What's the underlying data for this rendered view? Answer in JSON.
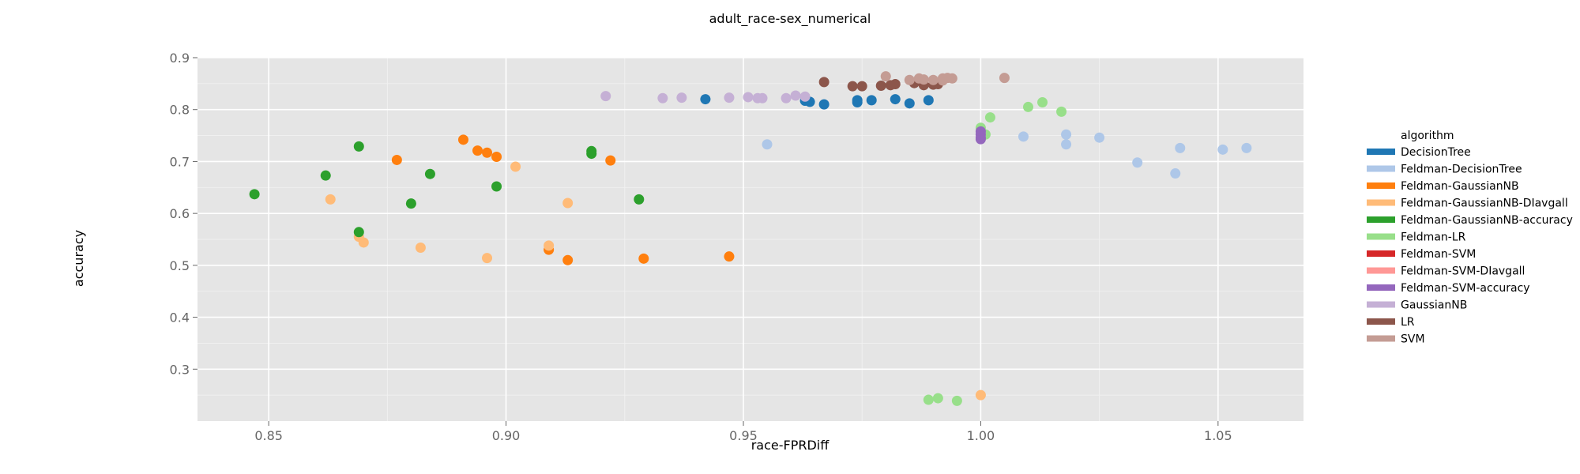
{
  "chart_data": {
    "type": "scatter",
    "title": "adult_race-sex_numerical",
    "xlabel": "race-FPRDiff",
    "ylabel": "accuracy",
    "xlim": [
      0.835,
      1.068
    ],
    "ylim": [
      0.2,
      0.9
    ],
    "xticks": [
      "0.85",
      "0.90",
      "0.95",
      "1.00",
      "1.05"
    ],
    "yticks": [
      "0.3",
      "0.4",
      "0.5",
      "0.6",
      "0.7",
      "0.8",
      "0.9"
    ],
    "grid": true,
    "legend": {
      "title": "algorithm",
      "position": "right"
    },
    "series": [
      {
        "name": "DecisionTree",
        "color": "#1f77b4",
        "points": [
          [
            0.942,
            0.82
          ],
          [
            0.963,
            0.817
          ],
          [
            0.964,
            0.815
          ],
          [
            0.967,
            0.81
          ],
          [
            0.974,
            0.818
          ],
          [
            0.974,
            0.814
          ],
          [
            0.977,
            0.818
          ],
          [
            0.982,
            0.82
          ],
          [
            0.985,
            0.812
          ],
          [
            0.989,
            0.818
          ]
        ]
      },
      {
        "name": "Feldman-DecisionTree",
        "color": "#aec7e8",
        "points": [
          [
            0.955,
            0.733
          ],
          [
            1.009,
            0.748
          ],
          [
            1.018,
            0.752
          ],
          [
            1.018,
            0.733
          ],
          [
            1.025,
            0.746
          ],
          [
            1.033,
            0.698
          ],
          [
            1.041,
            0.677
          ],
          [
            1.042,
            0.726
          ],
          [
            1.051,
            0.723
          ],
          [
            1.056,
            0.726
          ]
        ]
      },
      {
        "name": "Feldman-GaussianNB",
        "color": "#ff7f0e",
        "points": [
          [
            0.877,
            0.703
          ],
          [
            0.891,
            0.742
          ],
          [
            0.894,
            0.721
          ],
          [
            0.896,
            0.717
          ],
          [
            0.898,
            0.709
          ],
          [
            0.909,
            0.53
          ],
          [
            0.913,
            0.51
          ],
          [
            0.922,
            0.702
          ],
          [
            0.929,
            0.513
          ],
          [
            0.947,
            0.517
          ]
        ]
      },
      {
        "name": "Feldman-GaussianNB-DIavgall",
        "color": "#ffbb78",
        "points": [
          [
            0.863,
            0.627
          ],
          [
            0.869,
            0.555
          ],
          [
            0.87,
            0.544
          ],
          [
            0.882,
            0.534
          ],
          [
            0.896,
            0.514
          ],
          [
            0.902,
            0.69
          ],
          [
            0.909,
            0.538
          ],
          [
            0.913,
            0.62
          ],
          [
            1.0,
            0.25
          ]
        ]
      },
      {
        "name": "Feldman-GaussianNB-accuracy",
        "color": "#2ca02c",
        "points": [
          [
            0.847,
            0.637
          ],
          [
            0.862,
            0.673
          ],
          [
            0.869,
            0.729
          ],
          [
            0.869,
            0.564
          ],
          [
            0.88,
            0.619
          ],
          [
            0.884,
            0.676
          ],
          [
            0.898,
            0.652
          ],
          [
            0.918,
            0.715
          ],
          [
            0.918,
            0.72
          ],
          [
            0.928,
            0.627
          ]
        ]
      },
      {
        "name": "Feldman-LR",
        "color": "#98df8a",
        "points": [
          [
            0.989,
            0.241
          ],
          [
            0.991,
            0.244
          ],
          [
            0.995,
            0.239
          ],
          [
            1.0,
            0.765
          ],
          [
            1.001,
            0.752
          ],
          [
            1.002,
            0.785
          ],
          [
            1.01,
            0.805
          ],
          [
            1.013,
            0.814
          ],
          [
            1.017,
            0.796
          ]
        ]
      },
      {
        "name": "Feldman-SVM",
        "color": "#d62728",
        "points": []
      },
      {
        "name": "Feldman-SVM-DIavgall",
        "color": "#ff9896",
        "points": []
      },
      {
        "name": "Feldman-SVM-accuracy",
        "color": "#9467bd",
        "points": [
          [
            1.0,
            0.758
          ],
          [
            1.0,
            0.752
          ],
          [
            1.0,
            0.746
          ],
          [
            1.0,
            0.743
          ]
        ]
      },
      {
        "name": "GaussianNB",
        "color": "#c5b0d5",
        "points": [
          [
            0.921,
            0.826
          ],
          [
            0.933,
            0.822
          ],
          [
            0.937,
            0.823
          ],
          [
            0.947,
            0.823
          ],
          [
            0.951,
            0.824
          ],
          [
            0.953,
            0.822
          ],
          [
            0.954,
            0.822
          ],
          [
            0.959,
            0.822
          ],
          [
            0.961,
            0.827
          ],
          [
            0.963,
            0.825
          ]
        ]
      },
      {
        "name": "LR",
        "color": "#8c564b",
        "points": [
          [
            0.967,
            0.853
          ],
          [
            0.973,
            0.845
          ],
          [
            0.975,
            0.845
          ],
          [
            0.979,
            0.846
          ],
          [
            0.981,
            0.847
          ],
          [
            0.982,
            0.849
          ],
          [
            0.986,
            0.851
          ],
          [
            0.988,
            0.847
          ],
          [
            0.99,
            0.848
          ],
          [
            0.991,
            0.849
          ]
        ]
      },
      {
        "name": "SVM",
        "color": "#c49c94",
        "points": [
          [
            0.98,
            0.864
          ],
          [
            0.985,
            0.857
          ],
          [
            0.987,
            0.86
          ],
          [
            0.988,
            0.858
          ],
          [
            0.99,
            0.857
          ],
          [
            0.992,
            0.86
          ],
          [
            0.993,
            0.861
          ],
          [
            0.992,
            0.856
          ],
          [
            0.994,
            0.86
          ],
          [
            1.005,
            0.861
          ]
        ]
      }
    ]
  }
}
